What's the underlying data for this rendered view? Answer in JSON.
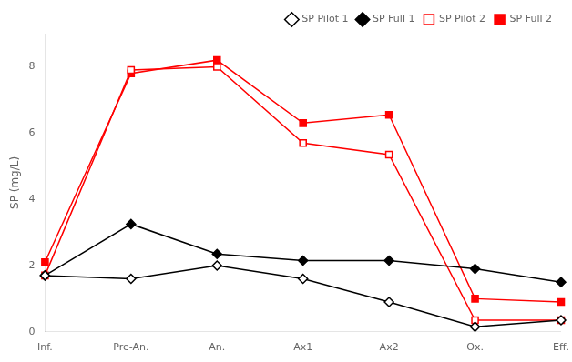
{
  "chart_data": {
    "type": "line",
    "categories": [
      "Inf.",
      "Pre-An.",
      "An.",
      "Ax1",
      "Ax2",
      "Ox.",
      "Eff."
    ],
    "series": [
      {
        "name": "SP Pilot 1",
        "color": "black",
        "marker": "diamond-open",
        "values": [
          1.7,
          1.6,
          2.0,
          1.6,
          0.9,
          0.15,
          0.35
        ]
      },
      {
        "name": "SP Full 1",
        "color": "black",
        "marker": "diamond",
        "values": [
          1.7,
          3.25,
          2.35,
          2.15,
          2.15,
          1.9,
          1.5
        ]
      },
      {
        "name": "SP Pilot 2",
        "color": "red",
        "marker": "square-open",
        "values": [
          1.7,
          7.9,
          8.0,
          5.7,
          5.35,
          0.35,
          0.35
        ]
      },
      {
        "name": "SP Full 2",
        "color": "red",
        "marker": "square",
        "values": [
          2.1,
          7.8,
          8.2,
          6.3,
          6.55,
          1.0,
          0.9
        ]
      }
    ],
    "ylabel": "SP (mg/L)",
    "ylim": [
      0,
      9.0
    ],
    "yticks": [
      0,
      2,
      4,
      6,
      8
    ],
    "grid": false,
    "legend": "upper right"
  }
}
